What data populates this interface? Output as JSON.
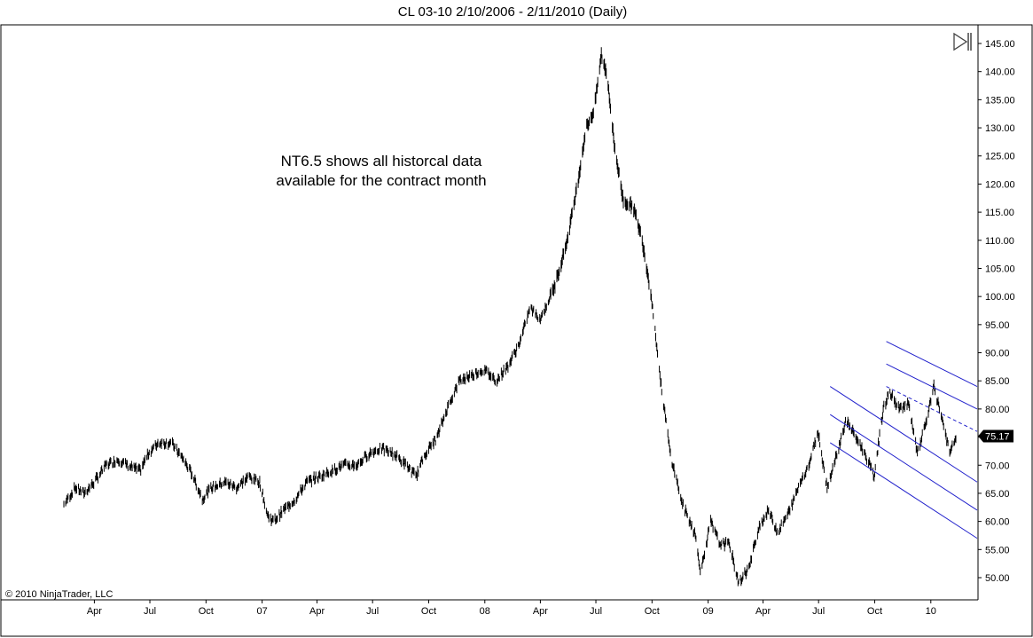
{
  "window": {
    "title": "CL 03-10  2/10/2006 - 2/11/2010 (Daily)"
  },
  "annotation": {
    "line1": "NT6.5 shows all historcal data",
    "line2": "available for the contract month"
  },
  "copyright": "© 2010 NinjaTrader, LLC",
  "last_price": "75.17",
  "icons": {
    "toolbar": "play-to-end-icon"
  },
  "colors": {
    "bars": "#000000",
    "channel": "#2222cc",
    "price_tag_bg": "#000000",
    "frame": "#000000"
  },
  "chart_data": {
    "type": "line",
    "title": "CL 03-10  2/10/2006 - 2/11/2010 (Daily)",
    "xlabel": "",
    "ylabel": "",
    "x_range": [
      "2006-02-10",
      "2010-02-11"
    ],
    "ylim": [
      47,
      148
    ],
    "y_axis_position": "right",
    "grid": false,
    "y_ticks": [
      "50.00",
      "55.00",
      "60.00",
      "65.00",
      "70.00",
      "75.00",
      "80.00",
      "85.00",
      "90.00",
      "95.00",
      "100.00",
      "105.00",
      "110.00",
      "115.00",
      "120.00",
      "125.00",
      "130.00",
      "135.00",
      "140.00",
      "145.00"
    ],
    "x_ticks": [
      {
        "label": "Apr",
        "date": "2006-04-01"
      },
      {
        "label": "Jul",
        "date": "2006-07-01"
      },
      {
        "label": "Oct",
        "date": "2006-10-01"
      },
      {
        "label": "07",
        "date": "2007-01-01"
      },
      {
        "label": "Apr",
        "date": "2007-04-01"
      },
      {
        "label": "Jul",
        "date": "2007-07-01"
      },
      {
        "label": "Oct",
        "date": "2007-10-01"
      },
      {
        "label": "08",
        "date": "2008-01-01"
      },
      {
        "label": "Apr",
        "date": "2008-04-01"
      },
      {
        "label": "Jul",
        "date": "2008-07-01"
      },
      {
        "label": "Oct",
        "date": "2008-10-01"
      },
      {
        "label": "09",
        "date": "2009-01-01"
      },
      {
        "label": "Apr",
        "date": "2009-04-01"
      },
      {
        "label": "Jul",
        "date": "2009-07-01"
      },
      {
        "label": "Oct",
        "date": "2009-10-01"
      },
      {
        "label": "10",
        "date": "2010-01-01"
      }
    ],
    "series": [
      {
        "values": [
          [
            "2006-02-10",
            63
          ],
          [
            "2006-03-01",
            66
          ],
          [
            "2006-03-15",
            65
          ],
          [
            "2006-04-01",
            67
          ],
          [
            "2006-04-20",
            70
          ],
          [
            "2006-05-10",
            71
          ],
          [
            "2006-05-25",
            70
          ],
          [
            "2006-06-15",
            69
          ],
          [
            "2006-06-28",
            72
          ],
          [
            "2006-07-15",
            74
          ],
          [
            "2006-08-05",
            74
          ],
          [
            "2006-08-25",
            71
          ],
          [
            "2006-09-10",
            68
          ],
          [
            "2006-09-25",
            64
          ],
          [
            "2006-10-10",
            66
          ],
          [
            "2006-11-01",
            67
          ],
          [
            "2006-11-20",
            66
          ],
          [
            "2006-12-10",
            68
          ],
          [
            "2006-12-28",
            67
          ],
          [
            "2007-01-10",
            61
          ],
          [
            "2007-01-20",
            60
          ],
          [
            "2007-02-05",
            62
          ],
          [
            "2007-02-25",
            64
          ],
          [
            "2007-03-15",
            67
          ],
          [
            "2007-04-05",
            68
          ],
          [
            "2007-04-25",
            69
          ],
          [
            "2007-05-15",
            70
          ],
          [
            "2007-06-05",
            70
          ],
          [
            "2007-06-25",
            72
          ],
          [
            "2007-07-15",
            73
          ],
          [
            "2007-08-05",
            72
          ],
          [
            "2007-08-25",
            70
          ],
          [
            "2007-09-10",
            68
          ],
          [
            "2007-09-25",
            72
          ],
          [
            "2007-10-15",
            75
          ],
          [
            "2007-10-31",
            80
          ],
          [
            "2007-11-20",
            85
          ],
          [
            "2007-12-10",
            86
          ],
          [
            "2007-12-31",
            87
          ],
          [
            "2008-01-20",
            85
          ],
          [
            "2008-02-10",
            88
          ],
          [
            "2008-02-28",
            92
          ],
          [
            "2008-03-15",
            98
          ],
          [
            "2008-04-01",
            96
          ],
          [
            "2008-04-25",
            102
          ],
          [
            "2008-05-15",
            110
          ],
          [
            "2008-06-01",
            120
          ],
          [
            "2008-06-15",
            130
          ],
          [
            "2008-06-28",
            133
          ],
          [
            "2008-07-10",
            143
          ],
          [
            "2008-07-20",
            139
          ],
          [
            "2008-07-31",
            127
          ],
          [
            "2008-08-15",
            117
          ],
          [
            "2008-08-31",
            116
          ],
          [
            "2008-09-15",
            110
          ],
          [
            "2008-09-30",
            100
          ],
          [
            "2008-10-15",
            85
          ],
          [
            "2008-10-31",
            72
          ],
          [
            "2008-11-20",
            63
          ],
          [
            "2008-12-10",
            58
          ],
          [
            "2008-12-20",
            51
          ],
          [
            "2009-01-05",
            60
          ],
          [
            "2009-01-20",
            56
          ],
          [
            "2009-02-05",
            56
          ],
          [
            "2009-02-20",
            49
          ],
          [
            "2009-03-10",
            52
          ],
          [
            "2009-03-25",
            59
          ],
          [
            "2009-04-10",
            62
          ],
          [
            "2009-04-25",
            58
          ],
          [
            "2009-05-15",
            62
          ],
          [
            "2009-06-01",
            67
          ],
          [
            "2009-06-15",
            70
          ],
          [
            "2009-06-30",
            76
          ],
          [
            "2009-07-15",
            66
          ],
          [
            "2009-07-31",
            72
          ],
          [
            "2009-08-15",
            78
          ],
          [
            "2009-08-31",
            75
          ],
          [
            "2009-09-15",
            72
          ],
          [
            "2009-09-30",
            68
          ],
          [
            "2009-10-15",
            80
          ],
          [
            "2009-10-25",
            83
          ],
          [
            "2009-11-10",
            80
          ],
          [
            "2009-11-25",
            81
          ],
          [
            "2009-12-10",
            72
          ],
          [
            "2009-12-25",
            78
          ],
          [
            "2010-01-06",
            84
          ],
          [
            "2010-01-20",
            78
          ],
          [
            "2010-02-01",
            72
          ],
          [
            "2010-02-11",
            75
          ]
        ]
      }
    ],
    "regression_channel": {
      "start_date": "2009-07-20",
      "end_date": "2010-02-11",
      "center": [
        79,
        62
      ],
      "offsets": [
        -5,
        0,
        5
      ],
      "style": "solid"
    },
    "regression_channel_2": {
      "start_date": "2009-10-20",
      "end_date": "2010-02-11",
      "center": [
        88,
        80
      ],
      "offsets": [
        -4,
        0,
        4
      ],
      "style": "mixed"
    }
  }
}
